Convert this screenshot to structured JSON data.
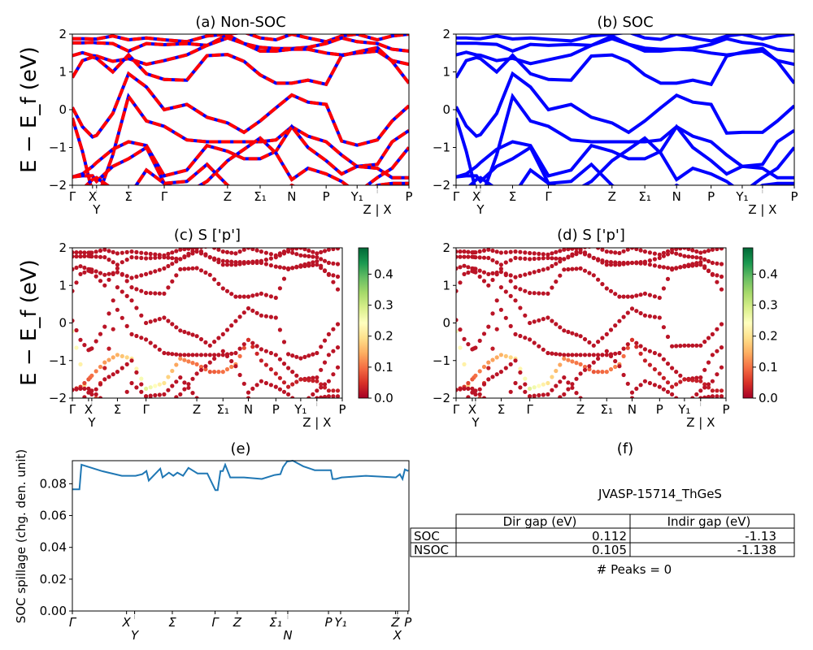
{
  "chart_data": [
    {
      "type": "line",
      "title": "(a) Non-SOC",
      "ylabel": "E − E_f (eV)",
      "ylim": [
        -2,
        2
      ],
      "yticks": [
        2,
        1,
        0,
        -1,
        -2
      ],
      "ytick_labels": [
        "2",
        "1",
        "0",
        "−1",
        "−2"
      ],
      "xlim": [
        0,
        1
      ],
      "kpath_ticks": [
        {
          "k": 0,
          "label": "Γ"
        },
        {
          "k": 0.06,
          "label": "X"
        },
        {
          "k": 0.072,
          "label": "Y"
        },
        {
          "k": 0.167,
          "label": "Σ"
        },
        {
          "k": 0.273,
          "label": "Γ"
        },
        {
          "k": 0.461,
          "label": "Z"
        },
        {
          "k": 0.558,
          "label": "Σ₁"
        },
        {
          "k": 0.652,
          "label": "N"
        },
        {
          "k": 0.754,
          "label": "P"
        },
        {
          "k": 0.846,
          "label": "Y₁"
        },
        {
          "k": 0.906,
          "label": "Z | X"
        },
        {
          "k": 1.0,
          "label": "P"
        }
      ],
      "line_colors": [
        "#0000ff",
        "#ff0000"
      ],
      "k": [
        0,
        0.03,
        0.06,
        0.072,
        0.12,
        0.167,
        0.22,
        0.273,
        0.34,
        0.4,
        0.461,
        0.51,
        0.558,
        0.605,
        0.652,
        0.7,
        0.754,
        0.8,
        0.846,
        0.906,
        0.95,
        1.0
      ],
      "bands": [
        [
          1.88,
          1.88,
          1.87,
          1.87,
          1.95,
          1.85,
          1.9,
          1.85,
          1.8,
          1.95,
          2.0,
          2.05,
          1.9,
          1.85,
          2.0,
          1.9,
          1.8,
          1.95,
          2.0,
          1.85,
          1.95,
          2.0
        ],
        [
          1.77,
          1.77,
          1.78,
          1.77,
          1.75,
          1.55,
          1.75,
          1.72,
          1.75,
          1.7,
          1.98,
          1.75,
          1.65,
          1.62,
          1.62,
          1.65,
          1.75,
          1.9,
          1.8,
          1.75,
          1.6,
          1.55
        ],
        [
          1.43,
          1.51,
          1.43,
          1.42,
          1.28,
          1.35,
          1.2,
          1.3,
          1.45,
          1.7,
          1.9,
          1.75,
          1.55,
          1.55,
          1.6,
          1.6,
          1.5,
          1.45,
          1.5,
          1.55,
          1.3,
          1.2
        ],
        [
          0.85,
          1.3,
          1.39,
          1.36,
          1.0,
          1.45,
          0.95,
          0.8,
          0.78,
          1.43,
          1.46,
          1.28,
          0.92,
          0.7,
          0.7,
          0.78,
          0.67,
          1.43,
          1.53,
          1.64,
          1.28,
          0.7
        ],
        [
          0.06,
          -0.45,
          -0.72,
          -0.68,
          -0.1,
          0.95,
          0.6,
          0.0,
          0.14,
          -0.2,
          -0.35,
          -0.6,
          -0.3,
          0.05,
          0.39,
          0.2,
          0.14,
          -0.83,
          -0.94,
          -0.8,
          -0.3,
          0.1
        ],
        [
          -0.22,
          -1.1,
          -2.2,
          -2.4,
          -1.2,
          0.35,
          -0.3,
          -0.44,
          -0.8,
          -0.85,
          -0.85,
          -0.85,
          -0.85,
          -0.8,
          -0.45,
          -0.7,
          -0.85,
          -1.2,
          -1.5,
          -1.45,
          -0.85,
          -0.55
        ],
        [
          -1.78,
          -1.7,
          -1.5,
          -1.4,
          -1.05,
          -0.85,
          -0.95,
          -1.75,
          -1.6,
          -0.95,
          -1.1,
          -1.3,
          -1.3,
          -1.1,
          -0.45,
          -1.0,
          -1.35,
          -1.7,
          -1.5,
          -1.55,
          -1.8,
          -1.8
        ],
        [
          -1.78,
          -1.75,
          -1.75,
          -1.9,
          -1.5,
          -1.3,
          -1.0,
          -1.95,
          -2.2,
          -1.9,
          -1.35,
          -1.05,
          -0.75,
          -1.15,
          -1.85,
          -1.55,
          -1.7,
          -1.9,
          -2.2,
          -1.8,
          -1.55,
          -1.0
        ],
        [
          -2.3,
          -2.1,
          -1.85,
          -1.8,
          -2.1,
          -2.3,
          -1.6,
          -1.95,
          -1.9,
          -1.45,
          -2.0,
          -2.3,
          -2.3,
          -2.3,
          -2.0,
          -2.2,
          -2.3,
          -2.3,
          -2.3,
          -2.0,
          -1.95,
          -1.95
        ]
      ]
    },
    {
      "type": "line",
      "title": "(b) SOC",
      "ylim": [
        -2,
        2
      ],
      "line_colors": [
        "#0000ff"
      ],
      "bands": [
        [
          1.9,
          1.9,
          1.88,
          1.88,
          1.95,
          1.87,
          1.9,
          1.86,
          1.82,
          1.95,
          2.0,
          2.05,
          1.9,
          1.86,
          2.0,
          1.9,
          1.82,
          1.95,
          2.0,
          1.87,
          1.95,
          2.0
        ],
        [
          1.76,
          1.76,
          1.76,
          1.75,
          1.73,
          1.55,
          1.73,
          1.7,
          1.73,
          1.7,
          1.95,
          1.73,
          1.63,
          1.6,
          1.6,
          1.63,
          1.73,
          1.88,
          1.78,
          1.73,
          1.6,
          1.55
        ],
        [
          1.45,
          1.52,
          1.45,
          1.44,
          1.3,
          1.36,
          1.22,
          1.32,
          1.45,
          1.7,
          1.88,
          1.73,
          1.55,
          1.55,
          1.6,
          1.58,
          1.5,
          1.45,
          1.5,
          1.55,
          1.3,
          1.2
        ],
        [
          0.85,
          1.3,
          1.38,
          1.35,
          1.0,
          1.44,
          0.95,
          0.8,
          0.78,
          1.42,
          1.45,
          1.27,
          0.92,
          0.7,
          0.7,
          0.78,
          0.67,
          1.42,
          1.52,
          1.62,
          1.28,
          0.7
        ],
        [
          0.08,
          -0.43,
          -0.7,
          -0.66,
          -0.1,
          0.95,
          0.6,
          0.0,
          0.14,
          -0.2,
          -0.35,
          -0.6,
          -0.3,
          0.05,
          0.38,
          0.2,
          0.14,
          -0.62,
          -0.6,
          -0.6,
          -0.3,
          0.1
        ],
        [
          -0.22,
          -1.1,
          -2.2,
          -2.4,
          -1.2,
          0.35,
          -0.3,
          -0.44,
          -0.8,
          -0.85,
          -0.85,
          -0.85,
          -0.85,
          -0.8,
          -0.45,
          -0.7,
          -0.85,
          -1.2,
          -1.5,
          -1.45,
          -0.85,
          -0.55
        ],
        [
          -1.78,
          -1.7,
          -1.5,
          -1.4,
          -1.05,
          -0.85,
          -0.95,
          -1.75,
          -1.6,
          -0.95,
          -1.1,
          -1.3,
          -1.3,
          -1.1,
          -0.45,
          -1.0,
          -1.35,
          -1.7,
          -1.5,
          -1.55,
          -1.8,
          -1.8
        ],
        [
          -1.78,
          -1.75,
          -1.75,
          -1.9,
          -1.5,
          -1.3,
          -1.0,
          -1.95,
          -2.2,
          -1.9,
          -1.35,
          -1.05,
          -0.75,
          -1.15,
          -1.85,
          -1.55,
          -1.7,
          -1.9,
          -2.2,
          -1.8,
          -1.55,
          -1.0
        ],
        [
          -2.3,
          -2.1,
          -1.85,
          -1.8,
          -2.1,
          -2.3,
          -1.6,
          -1.95,
          -1.9,
          -1.45,
          -2.0,
          -2.3,
          -2.3,
          -2.3,
          -2.0,
          -2.2,
          -2.3,
          -2.3,
          -2.3,
          -2.0,
          -1.95,
          -1.95
        ]
      ]
    },
    {
      "type": "scatter",
      "title": "(c)  S ['p']",
      "ylabel": "E − E_f (eV)",
      "ylim": [
        -2,
        2
      ],
      "colormap": "RdYlGn",
      "colorbar_range": [
        0,
        0.485
      ],
      "colorbar_ticks": [
        "0.0",
        "0.1",
        "0.2",
        "0.3",
        "0.4"
      ],
      "default_weight": 0.02,
      "band_weights": {
        "5": [
          0.25,
          0.22,
          0.15,
          0.1,
          0.03,
          0.02,
          0.02,
          0.02,
          0.02,
          0.02,
          0.02,
          0.02,
          0.02,
          0.02,
          0.02,
          0.02,
          0.02,
          0.02,
          0.02,
          0.02,
          0.02,
          0.02
        ],
        "6": [
          0.03,
          0.05,
          0.08,
          0.1,
          0.13,
          0.15,
          0.2,
          0.28,
          0.2,
          0.12,
          0.1,
          0.08,
          0.1,
          0.12,
          0.05,
          0.03,
          0.03,
          0.03,
          0.03,
          0.03,
          0.03,
          0.03
        ]
      }
    },
    {
      "type": "scatter",
      "title": "(d) S ['p']",
      "ylim": [
        -2,
        2
      ],
      "colormap": "RdYlGn",
      "colorbar_range": [
        0,
        0.485
      ],
      "colorbar_ticks": [
        "0.0",
        "0.1",
        "0.2",
        "0.3",
        "0.4"
      ]
    },
    {
      "type": "line",
      "title": "(e)",
      "ylabel": "SOC spillage (chg. den. unit)",
      "ylim": [
        0,
        0.0945
      ],
      "yticks": [
        "0.00",
        "0.02",
        "0.04",
        "0.06",
        "0.08"
      ],
      "line_color": "#1f77b4",
      "kpath_ticks": [
        {
          "k": 0,
          "label": "Γ"
        },
        {
          "k": 0.161,
          "label": "X"
        },
        {
          "k": 0.185,
          "label": "Y"
        },
        {
          "k": 0.297,
          "label": "Σ"
        },
        {
          "k": 0.424,
          "label": "Γ"
        },
        {
          "k": 0.49,
          "label": "Z"
        },
        {
          "k": 0.604,
          "label": "Σ₁"
        },
        {
          "k": 0.64,
          "label": "N"
        },
        {
          "k": 0.761,
          "label": "P"
        },
        {
          "k": 0.797,
          "label": "Y₁"
        },
        {
          "k": 0.96,
          "label": "Z"
        },
        {
          "k": 0.966,
          "label": "X"
        },
        {
          "k": 0.997,
          "label": "P"
        }
      ],
      "x": [
        0,
        0.021,
        0.027,
        0.087,
        0.147,
        0.188,
        0.208,
        0.22,
        0.227,
        0.261,
        0.268,
        0.287,
        0.3,
        0.312,
        0.329,
        0.345,
        0.372,
        0.401,
        0.425,
        0.432,
        0.44,
        0.447,
        0.454,
        0.469,
        0.51,
        0.563,
        0.601,
        0.618,
        0.626,
        0.638,
        0.655,
        0.686,
        0.72,
        0.768,
        0.773,
        0.783,
        0.8,
        0.872,
        0.961,
        0.973,
        0.981,
        0.988,
        0.998
      ],
      "y": [
        0.0765,
        0.0765,
        0.092,
        0.088,
        0.085,
        0.085,
        0.086,
        0.088,
        0.082,
        0.0895,
        0.084,
        0.087,
        0.085,
        0.087,
        0.085,
        0.09,
        0.0865,
        0.0865,
        0.076,
        0.076,
        0.088,
        0.088,
        0.092,
        0.084,
        0.084,
        0.083,
        0.0855,
        0.086,
        0.0905,
        0.094,
        0.0945,
        0.091,
        0.0885,
        0.0885,
        0.083,
        0.083,
        0.084,
        0.085,
        0.084,
        0.086,
        0.083,
        0.089,
        0.088
      ]
    },
    {
      "type": "table",
      "title": "(f)",
      "subtitle": "JVASP-15714_ThGeS",
      "columns": [
        "Dir gap (eV)",
        "Indir gap (eV)"
      ],
      "rows": [
        {
          "label": "SOC",
          "values": [
            "0.112",
            "-1.13"
          ]
        },
        {
          "label": "NSOC",
          "values": [
            "0.105",
            "-1.138"
          ]
        }
      ],
      "footer": "# Peaks = 0"
    }
  ]
}
